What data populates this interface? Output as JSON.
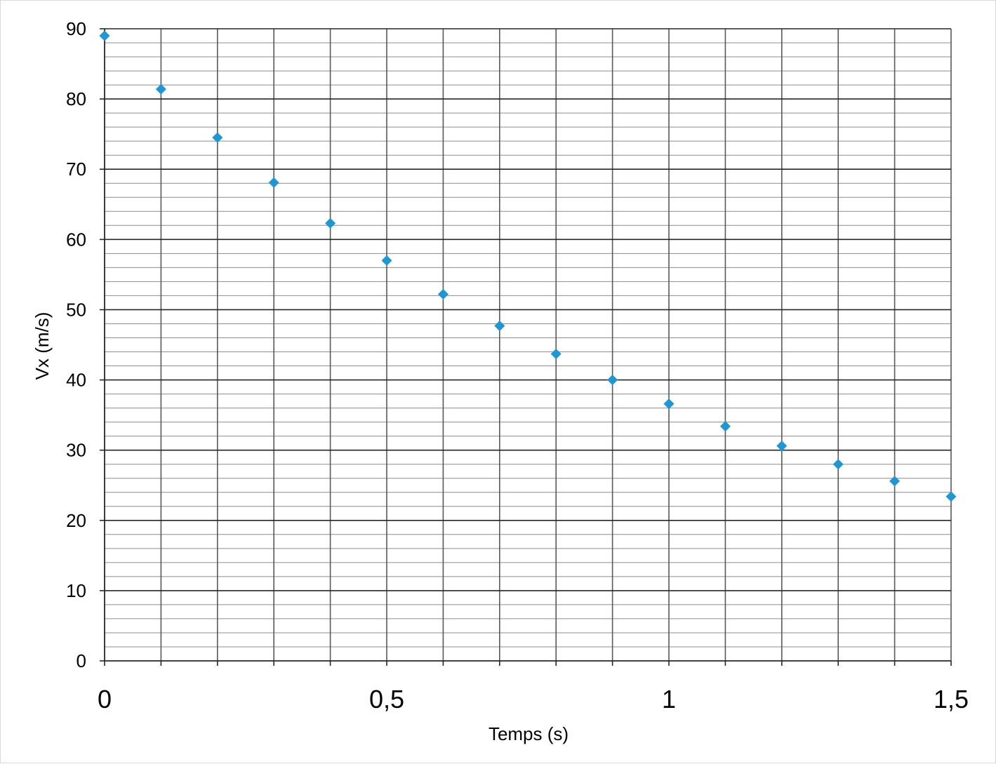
{
  "chart_data": {
    "type": "scatter",
    "title": "",
    "xlabel": "Temps (s)",
    "ylabel": "Vx (m/s)",
    "xlim": [
      0,
      1.5
    ],
    "ylim": [
      0,
      90
    ],
    "x_ticks": [
      0,
      0.5,
      1,
      1.5
    ],
    "x_tick_labels": [
      "0",
      "0,5",
      "1",
      "1,5"
    ],
    "y_ticks": [
      0,
      10,
      20,
      30,
      40,
      50,
      60,
      70,
      80,
      90
    ],
    "y_tick_labels": [
      "0",
      "10",
      "20",
      "30",
      "40",
      "50",
      "60",
      "70",
      "80",
      "90"
    ],
    "x_minor_step": 0.1,
    "y_minor_step": 2,
    "grid": true,
    "legend": "none",
    "marker": "diamond",
    "series": [
      {
        "color": "#1f97d4",
        "x": [
          0,
          0.1,
          0.2,
          0.3,
          0.4,
          0.5,
          0.6,
          0.7,
          0.8,
          0.9,
          1.0,
          1.1,
          1.2,
          1.3,
          1.4,
          1.5
        ],
        "y": [
          89.0,
          81.4,
          74.5,
          68.1,
          62.3,
          57.0,
          52.2,
          47.7,
          43.7,
          40.0,
          36.6,
          33.4,
          30.6,
          28.0,
          25.6,
          23.4
        ]
      }
    ]
  }
}
